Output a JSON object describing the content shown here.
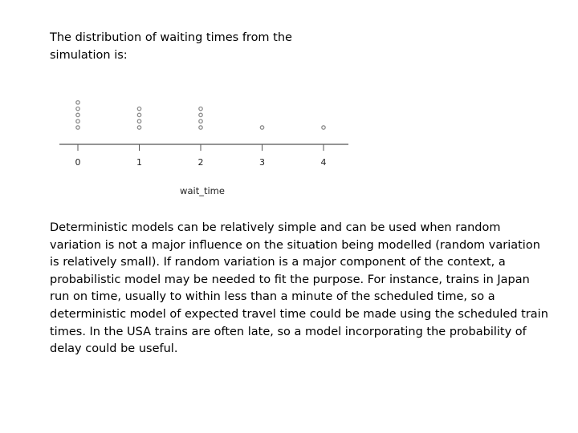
{
  "intro_text": "The distribution of waiting times from the simulation is:",
  "paragraph": "Deterministic models can be relatively simple and can be used when random variation is not a major influence on the situation being modelled (random variation is relatively small). If random variation is a major component of the context, a probabilistic model may be needed to fit the purpose.  For instance, trains in Japan run on time, usually to within less than a minute of the scheduled time, so a deterministic model of expected travel time could be made using the scheduled train times.  In the USA trains are often late, so a model incorporating the probability of delay could be useful.",
  "chart_data": {
    "type": "scatter",
    "subtype": "dot plot",
    "xlabel": "wait_time",
    "ylabel": "",
    "title": "",
    "x_ticks": [
      "0",
      "1",
      "2",
      "3",
      "4"
    ],
    "xlim": [
      -0.3,
      4.4
    ],
    "grid": false,
    "legend": "none",
    "x": [
      0,
      1,
      2,
      3,
      4
    ],
    "counts": [
      5,
      4,
      4,
      1,
      1
    ],
    "dot_color": "#8c8c8c"
  }
}
